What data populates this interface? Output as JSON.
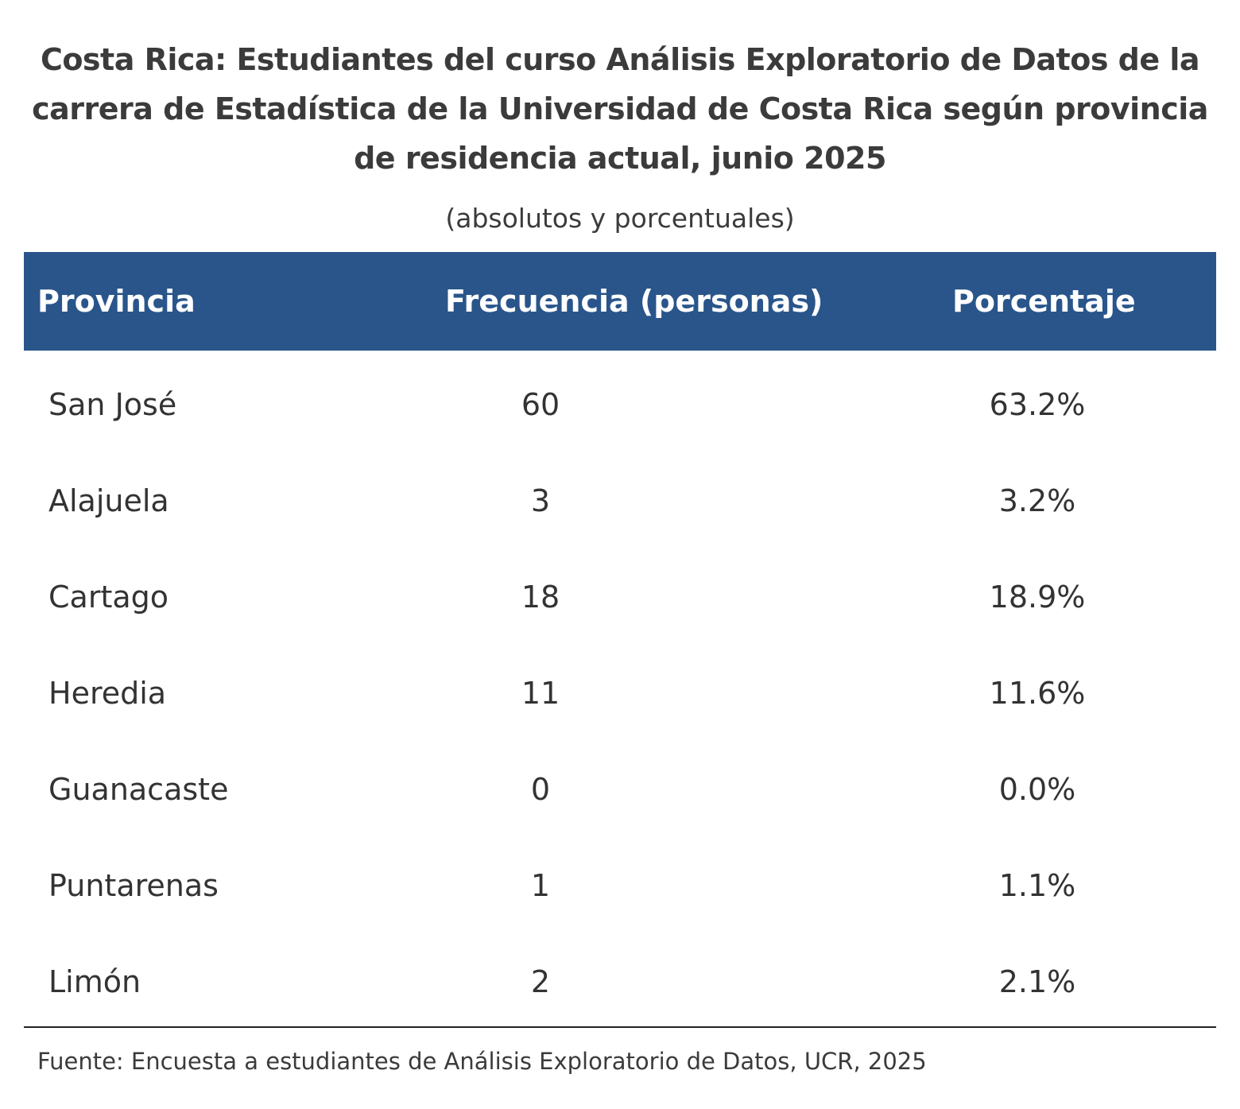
{
  "title": "Costa Rica: Estudiantes del curso Análisis Exploratorio de Datos de la carrera de Estadística de la Universidad de Costa Rica según provincia de residencia actual, junio 2025",
  "subtitle": "(absolutos y porcentuales)",
  "header": {
    "provincia": "Provincia",
    "frecuencia": "Frecuencia (personas)",
    "porcentaje": "Porcentaje"
  },
  "rows": [
    {
      "provincia": "San José",
      "frecuencia": "60",
      "porcentaje": "63.2%"
    },
    {
      "provincia": "Alajuela",
      "frecuencia": "3",
      "porcentaje": "3.2%"
    },
    {
      "provincia": "Cartago",
      "frecuencia": "18",
      "porcentaje": "18.9%"
    },
    {
      "provincia": "Heredia",
      "frecuencia": "11",
      "porcentaje": "11.6%"
    },
    {
      "provincia": "Guanacaste",
      "frecuencia": "0",
      "porcentaje": "0.0%"
    },
    {
      "provincia": "Puntarenas",
      "frecuencia": "1",
      "porcentaje": "1.1%"
    },
    {
      "provincia": "Limón",
      "frecuencia": "2",
      "porcentaje": "2.1%"
    }
  ],
  "source": "Fuente: Encuesta a estudiantes de Análisis Exploratorio de Datos, UCR, 2025",
  "colors": {
    "header_bg": "#29558b",
    "header_text": "#ffffff",
    "body_text": "#333333"
  }
}
